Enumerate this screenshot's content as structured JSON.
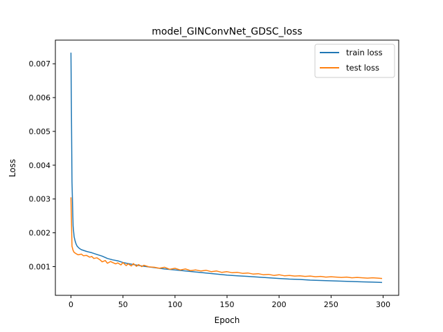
{
  "chart_data": {
    "type": "line",
    "title": "model_GINConvNet_GDSC_loss",
    "xlabel": "Epoch",
    "ylabel": "Loss",
    "xlim": [
      -15,
      315
    ],
    "ylim": [
      0.00015,
      0.0077
    ],
    "xticks": [
      0,
      50,
      100,
      150,
      200,
      250,
      300
    ],
    "xtick_labels": [
      "0",
      "50",
      "100",
      "150",
      "200",
      "250",
      "300"
    ],
    "yticks": [
      0.001,
      0.002,
      0.003,
      0.004,
      0.005,
      0.006,
      0.007
    ],
    "ytick_labels": [
      "0.001",
      "0.002",
      "0.003",
      "0.004",
      "0.005",
      "0.006",
      "0.007"
    ],
    "grid": false,
    "legend_position": "top-right",
    "series": [
      {
        "name": "train loss",
        "color": "#1f77b4",
        "x": [
          0,
          1,
          2,
          3,
          4,
          5,
          6,
          8,
          10,
          15,
          20,
          25,
          30,
          35,
          40,
          45,
          50,
          60,
          70,
          80,
          90,
          100,
          110,
          120,
          130,
          140,
          150,
          160,
          170,
          180,
          190,
          200,
          210,
          220,
          230,
          240,
          250,
          260,
          270,
          280,
          290,
          299
        ],
        "y": [
          0.00733,
          0.0035,
          0.0022,
          0.00188,
          0.00175,
          0.00166,
          0.0016,
          0.00154,
          0.0015,
          0.00145,
          0.00141,
          0.00136,
          0.00131,
          0.00124,
          0.0012,
          0.00117,
          0.00112,
          0.00106,
          0.00101,
          0.00097,
          0.00093,
          0.0009,
          0.00087,
          0.00084,
          0.00081,
          0.00078,
          0.00075,
          0.00073,
          0.00071,
          0.00069,
          0.00067,
          0.00065,
          0.00063,
          0.00062,
          0.0006,
          0.00059,
          0.00058,
          0.00057,
          0.00056,
          0.00055,
          0.00054,
          0.00053
        ]
      },
      {
        "name": "test loss",
        "color": "#ff7f0e",
        "x": [
          0,
          1,
          2,
          3,
          5,
          7,
          10,
          12,
          15,
          18,
          20,
          22,
          25,
          28,
          30,
          33,
          35,
          38,
          40,
          43,
          45,
          48,
          50,
          53,
          55,
          58,
          60,
          63,
          65,
          68,
          70,
          75,
          80,
          85,
          90,
          95,
          100,
          105,
          110,
          115,
          120,
          125,
          130,
          135,
          140,
          145,
          150,
          155,
          160,
          165,
          170,
          175,
          180,
          185,
          190,
          195,
          200,
          205,
          210,
          215,
          220,
          225,
          230,
          235,
          240,
          245,
          250,
          255,
          260,
          265,
          270,
          275,
          280,
          285,
          290,
          295,
          299
        ],
        "y": [
          0.00305,
          0.0016,
          0.00148,
          0.00142,
          0.00138,
          0.00135,
          0.00137,
          0.00132,
          0.00133,
          0.00128,
          0.0013,
          0.00124,
          0.00126,
          0.0012,
          0.00114,
          0.00118,
          0.0011,
          0.00115,
          0.00112,
          0.00108,
          0.00111,
          0.00105,
          0.00112,
          0.00103,
          0.00108,
          0.00102,
          0.00109,
          0.00101,
          0.00106,
          0.001,
          0.00104,
          0.00099,
          0.00098,
          0.00095,
          0.00098,
          0.00092,
          0.00095,
          0.0009,
          0.00093,
          0.00088,
          0.0009,
          0.00087,
          0.00089,
          0.00085,
          0.00087,
          0.00083,
          0.00085,
          0.00082,
          0.00083,
          0.0008,
          0.00081,
          0.00078,
          0.00079,
          0.00076,
          0.00077,
          0.00074,
          0.00076,
          0.00073,
          0.00074,
          0.00072,
          0.00073,
          0.00071,
          0.00072,
          0.0007,
          0.00071,
          0.00069,
          0.0007,
          0.00069,
          0.00068,
          0.00069,
          0.00067,
          0.00068,
          0.00067,
          0.00066,
          0.00067,
          0.00066,
          0.00065
        ]
      }
    ]
  }
}
